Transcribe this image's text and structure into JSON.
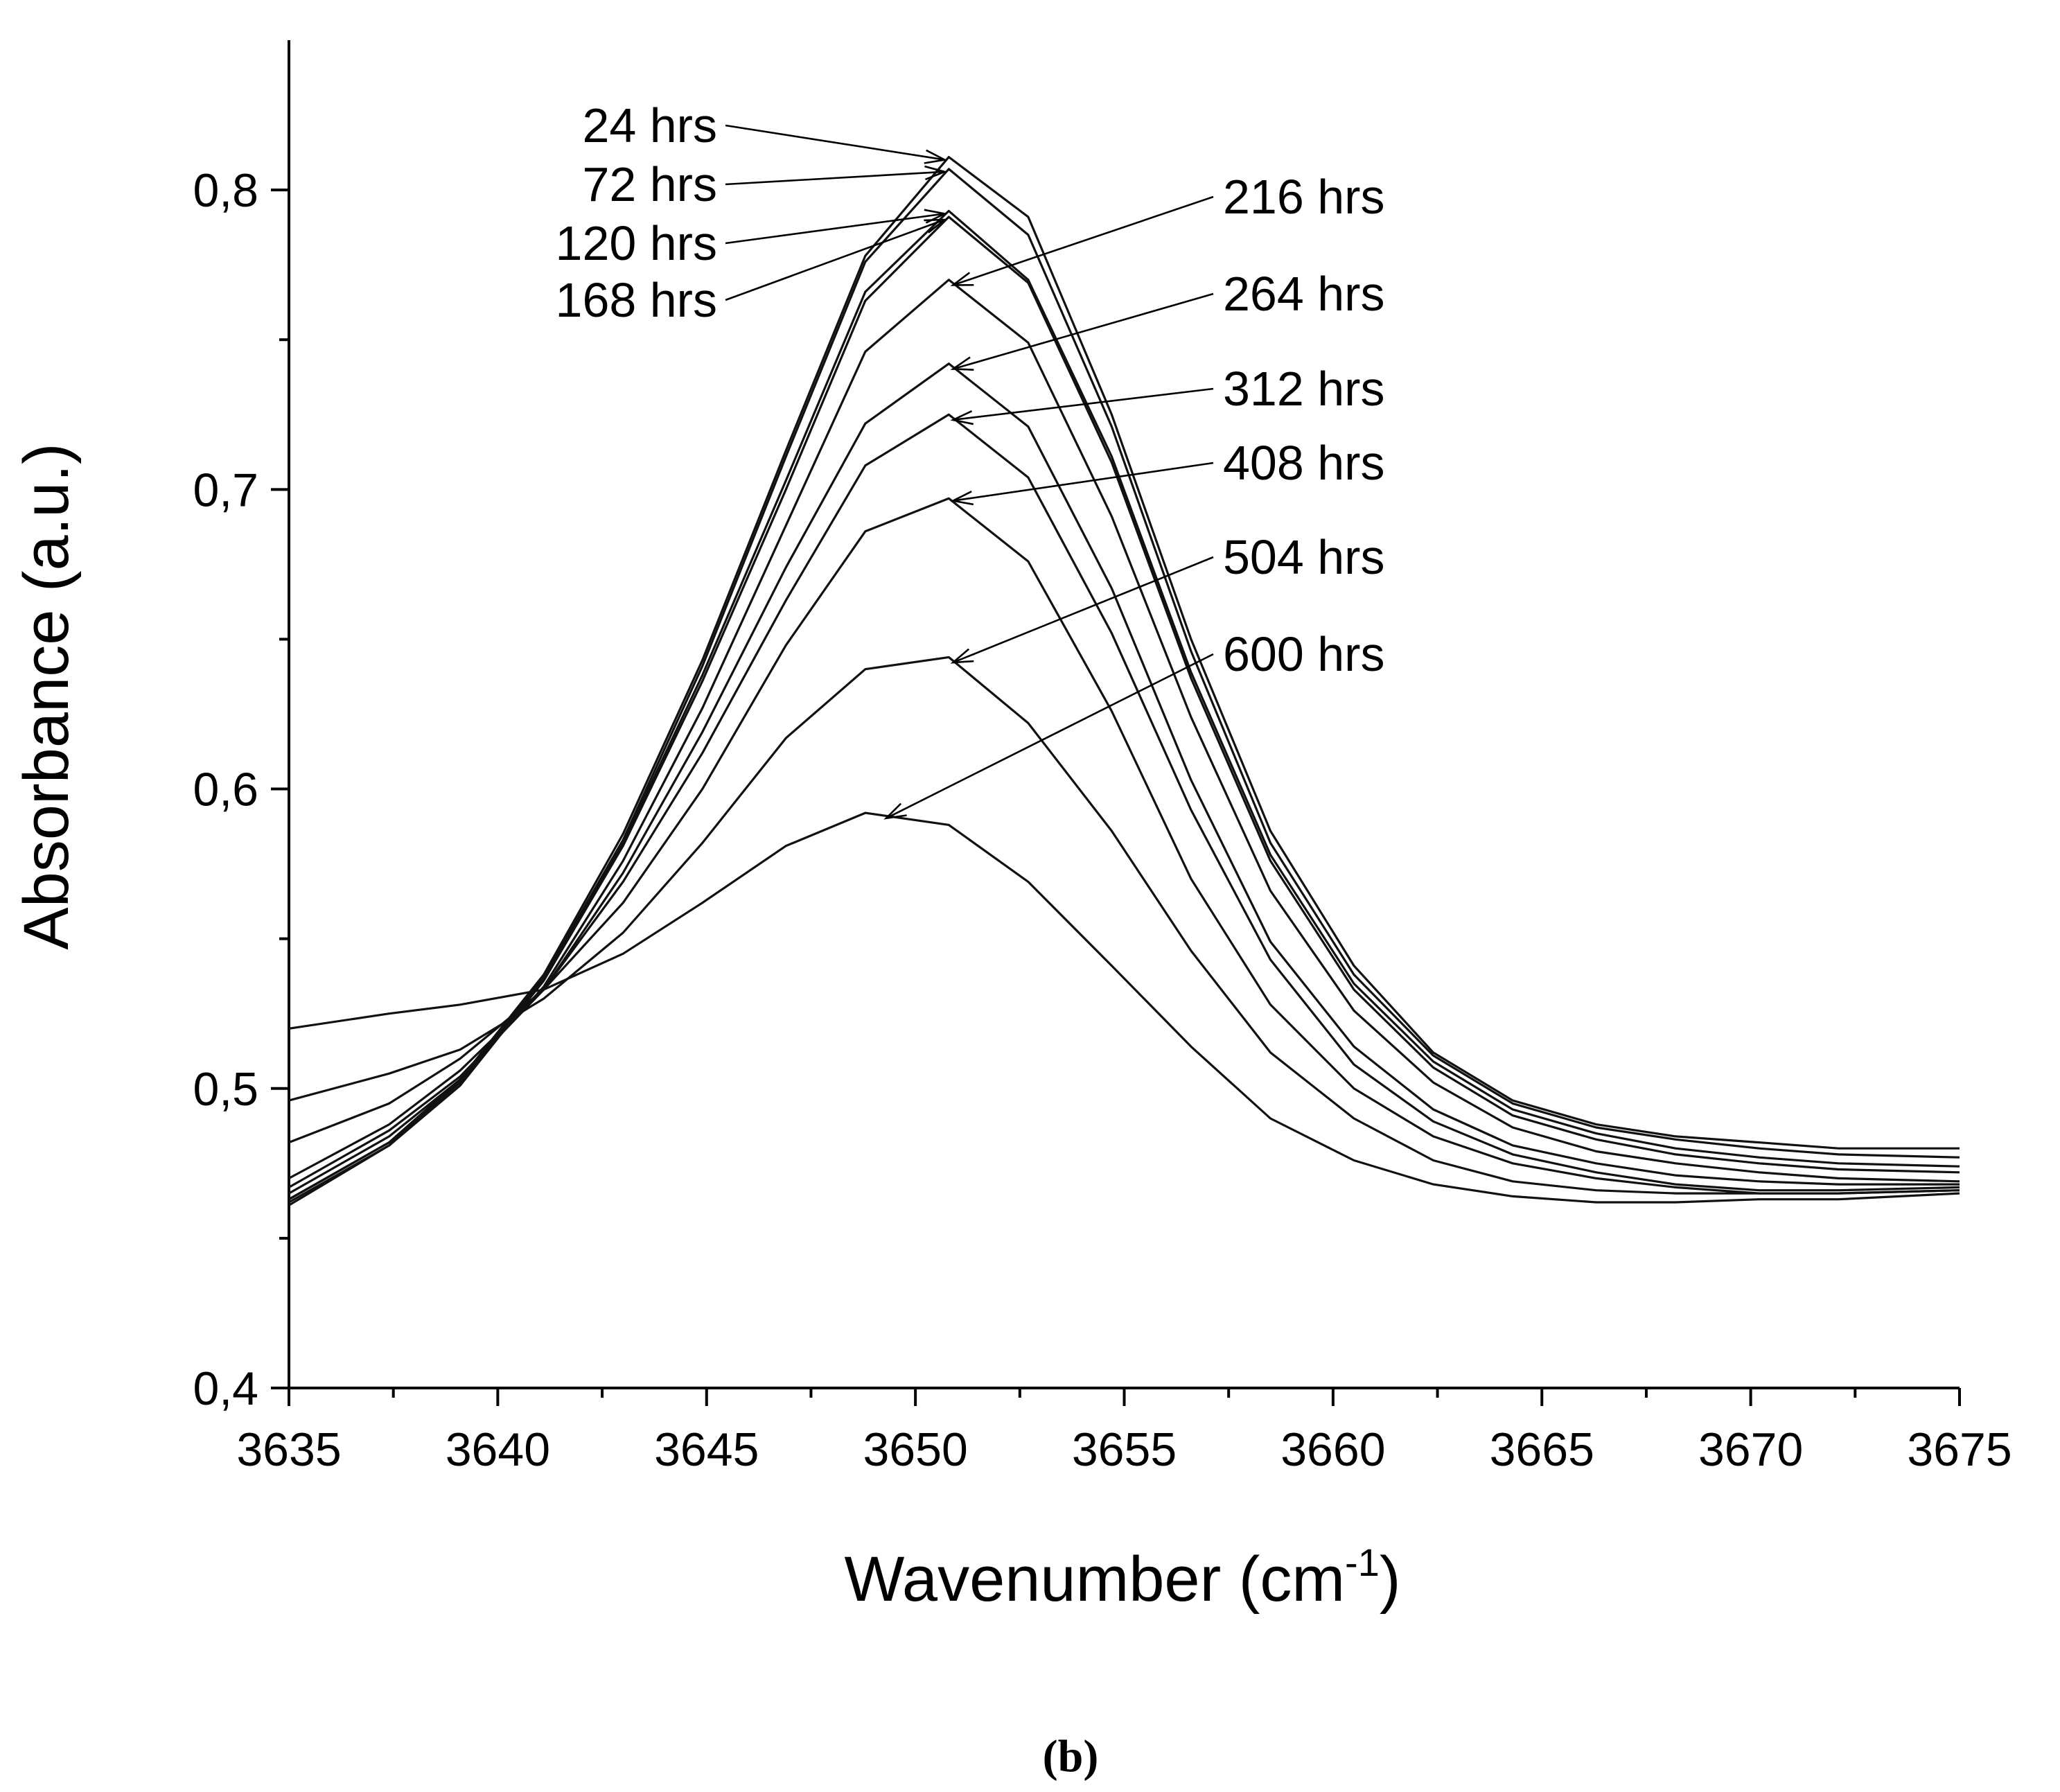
{
  "chart_data": {
    "type": "line",
    "xlabel": "Wavenumber (cm",
    "xlabel_sup": "-1",
    "xlabel_close": ")",
    "ylabel": "Absorbance (a.u.)",
    "xlim": [
      3635,
      3675
    ],
    "ylim": [
      0.4,
      0.85
    ],
    "x_ticks": [
      3635,
      3640,
      3645,
      3650,
      3655,
      3660,
      3665,
      3670,
      3675
    ],
    "x_tick_labels": [
      "3635",
      "3640",
      "3645",
      "3650",
      "3655",
      "3660",
      "3665",
      "3670",
      "3675"
    ],
    "y_ticks": [
      0.4,
      0.5,
      0.6,
      0.7,
      0.8
    ],
    "y_tick_labels": [
      "0,4",
      "0,5",
      "0,6",
      "0,7",
      "0,8"
    ],
    "x": [
      3635,
      3637.4,
      3639.1,
      3641.1,
      3643.0,
      3644.9,
      3646.9,
      3648.8,
      3650.8,
      3652.7,
      3654.7,
      3656.6,
      3658.5,
      3660.5,
      3662.4,
      3664.3,
      3666.3,
      3668.2,
      3670.2,
      3672.1,
      3675
    ],
    "series": [
      {
        "name": "24 hrs",
        "values": [
          0.463,
          0.482,
          0.503,
          0.538,
          0.585,
          0.643,
          0.713,
          0.778,
          0.811,
          0.791,
          0.725,
          0.65,
          0.586,
          0.541,
          0.512,
          0.496,
          0.488,
          0.484,
          0.482,
          0.48,
          0.48
        ]
      },
      {
        "name": "72 hrs",
        "values": [
          0.461,
          0.481,
          0.502,
          0.537,
          0.583,
          0.641,
          0.711,
          0.776,
          0.807,
          0.785,
          0.721,
          0.646,
          0.582,
          0.538,
          0.511,
          0.495,
          0.487,
          0.483,
          0.48,
          0.478,
          0.477
        ]
      },
      {
        "name": "120 hrs",
        "values": [
          0.462,
          0.481,
          0.501,
          0.536,
          0.582,
          0.638,
          0.703,
          0.766,
          0.793,
          0.77,
          0.711,
          0.639,
          0.578,
          0.535,
          0.509,
          0.493,
          0.485,
          0.48,
          0.477,
          0.475,
          0.474
        ]
      },
      {
        "name": "168 hrs",
        "values": [
          0.463,
          0.482,
          0.502,
          0.536,
          0.581,
          0.636,
          0.7,
          0.763,
          0.791,
          0.769,
          0.709,
          0.637,
          0.576,
          0.533,
          0.507,
          0.491,
          0.483,
          0.478,
          0.475,
          0.473,
          0.472
        ]
      },
      {
        "name": "216 hrs",
        "values": [
          0.465,
          0.484,
          0.503,
          0.534,
          0.576,
          0.627,
          0.688,
          0.746,
          0.77,
          0.749,
          0.691,
          0.624,
          0.566,
          0.526,
          0.502,
          0.487,
          0.479,
          0.475,
          0.472,
          0.47,
          0.469
        ]
      },
      {
        "name": "264 hrs",
        "values": [
          0.467,
          0.486,
          0.504,
          0.533,
          0.572,
          0.619,
          0.674,
          0.722,
          0.742,
          0.721,
          0.667,
          0.603,
          0.549,
          0.514,
          0.493,
          0.481,
          0.475,
          0.471,
          0.469,
          0.468,
          0.468
        ]
      },
      {
        "name": "312 hrs",
        "values": [
          0.47,
          0.488,
          0.506,
          0.533,
          0.569,
          0.612,
          0.663,
          0.708,
          0.725,
          0.704,
          0.652,
          0.593,
          0.543,
          0.508,
          0.489,
          0.478,
          0.472,
          0.468,
          0.466,
          0.466,
          0.467
        ]
      },
      {
        "name": "408 hrs",
        "values": [
          0.482,
          0.495,
          0.51,
          0.533,
          0.562,
          0.6,
          0.648,
          0.686,
          0.697,
          0.676,
          0.626,
          0.57,
          0.528,
          0.5,
          0.484,
          0.475,
          0.47,
          0.467,
          0.465,
          0.465,
          0.466
        ]
      },
      {
        "name": "504 hrs",
        "values": [
          0.496,
          0.505,
          0.513,
          0.53,
          0.552,
          0.582,
          0.617,
          0.64,
          0.644,
          0.622,
          0.586,
          0.546,
          0.512,
          0.49,
          0.476,
          0.469,
          0.466,
          0.465,
          0.465,
          0.465,
          0.466
        ]
      },
      {
        "name": "600 hrs",
        "values": [
          0.52,
          0.525,
          0.528,
          0.533,
          0.545,
          0.562,
          0.581,
          0.592,
          0.588,
          0.569,
          0.541,
          0.514,
          0.49,
          0.476,
          0.468,
          0.464,
          0.462,
          0.462,
          0.463,
          0.463,
          0.465
        ]
      }
    ],
    "annotations": [
      {
        "text": "24 hrs",
        "target": [
          3650.8,
          0.811
        ]
      },
      {
        "text": "72 hrs",
        "target": [
          3650.8,
          0.807
        ]
      },
      {
        "text": "120 hrs",
        "target": [
          3650.8,
          0.793
        ]
      },
      {
        "text": "168 hrs",
        "target": [
          3650.8,
          0.791
        ]
      },
      {
        "text": "216 hrs",
        "target": [
          3650.8,
          0.771
        ]
      },
      {
        "text": "264 hrs",
        "target": [
          3650.8,
          0.743
        ]
      },
      {
        "text": "312 hrs",
        "target": [
          3650.8,
          0.726
        ]
      },
      {
        "text": "408 hrs",
        "target": [
          3650.8,
          0.699
        ]
      },
      {
        "text": "504 hrs",
        "target": [
          3650.8,
          0.645
        ]
      },
      {
        "text": "600 hrs",
        "target": [
          3649.2,
          0.593
        ]
      }
    ],
    "panel_label": "(b)"
  }
}
